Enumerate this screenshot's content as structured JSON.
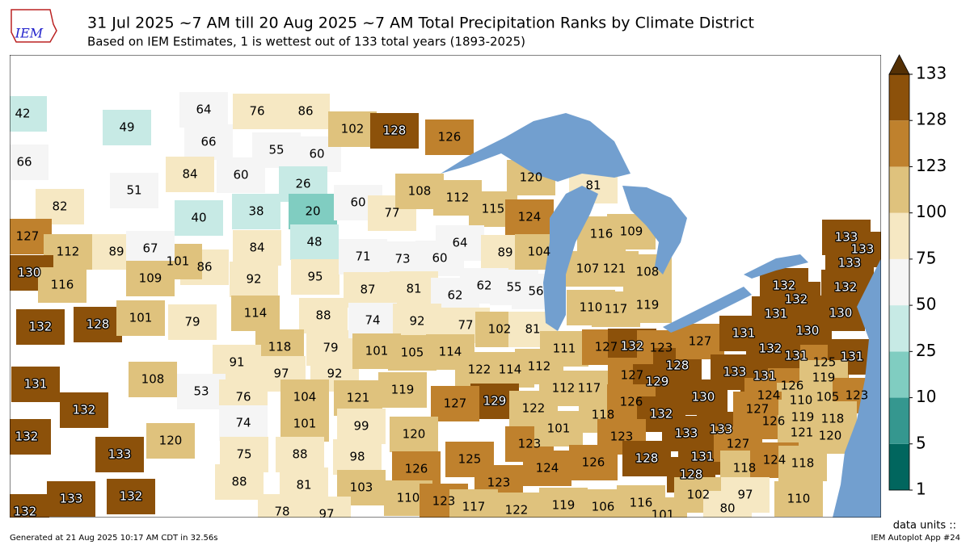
{
  "header": {
    "logo": "IEM",
    "title": "31 Jul 2025 ~7 AM till 20 Aug 2025 ~7 AM Total Precipitation Ranks by Climate District",
    "subtitle": "Based on IEM Estimates, 1 is wettest out of 133 total years (1893-2025)"
  },
  "colorbar": {
    "ticks": [
      1,
      5,
      10,
      25,
      50,
      75,
      100,
      123,
      128,
      133
    ],
    "colors": [
      "#01665e",
      "#35978f",
      "#80cdc1",
      "#c7eae5",
      "#f5f5f5",
      "#f6e8c3",
      "#dfc27d",
      "#bf812d",
      "#8c510a",
      "#543005"
    ],
    "units_label": "data units ::"
  },
  "district_ranks": [
    42,
    49,
    66,
    51,
    82,
    64,
    76,
    86,
    66,
    55,
    60,
    84,
    60,
    26,
    40,
    38,
    20,
    48,
    84,
    86,
    92,
    95,
    101,
    102,
    128,
    126,
    60,
    77,
    108,
    71,
    73,
    60,
    112,
    115,
    124,
    120,
    64,
    89,
    104,
    81,
    116,
    109,
    107,
    121,
    108,
    110,
    117,
    119,
    127,
    112,
    89,
    67,
    130,
    116,
    109,
    132,
    128,
    101,
    79,
    114,
    88,
    118,
    79,
    91,
    97,
    92,
    87,
    81,
    62,
    74,
    92,
    77,
    101,
    105,
    114,
    62,
    55,
    56,
    102,
    81,
    122,
    114,
    112,
    129,
    122,
    123,
    124,
    111,
    127,
    112,
    117,
    118,
    101,
    126,
    132,
    123,
    127,
    129,
    128,
    127,
    126,
    132,
    130,
    133,
    133,
    131,
    128,
    127,
    123,
    128,
    131,
    130,
    132,
    131,
    125,
    131,
    133,
    131,
    126,
    119,
    132,
    132,
    131,
    130,
    132,
    133,
    133,
    133,
    124,
    110,
    105,
    123,
    127,
    126,
    119,
    118,
    121,
    120,
    118,
    124,
    118,
    102,
    97,
    110,
    80,
    131,
    108,
    53,
    132,
    120,
    132,
    133,
    133,
    132,
    132,
    76,
    104,
    121,
    74,
    101,
    99,
    75,
    88,
    98,
    88,
    81,
    103,
    78,
    97,
    119,
    127,
    120,
    126,
    125,
    123,
    110,
    123,
    117,
    122,
    119,
    106,
    116,
    101
  ],
  "footer": {
    "generated": "Generated at 21 Aug 2025 10:17 AM CDT in 32.56s",
    "app": "IEM Autoplot App #24"
  }
}
